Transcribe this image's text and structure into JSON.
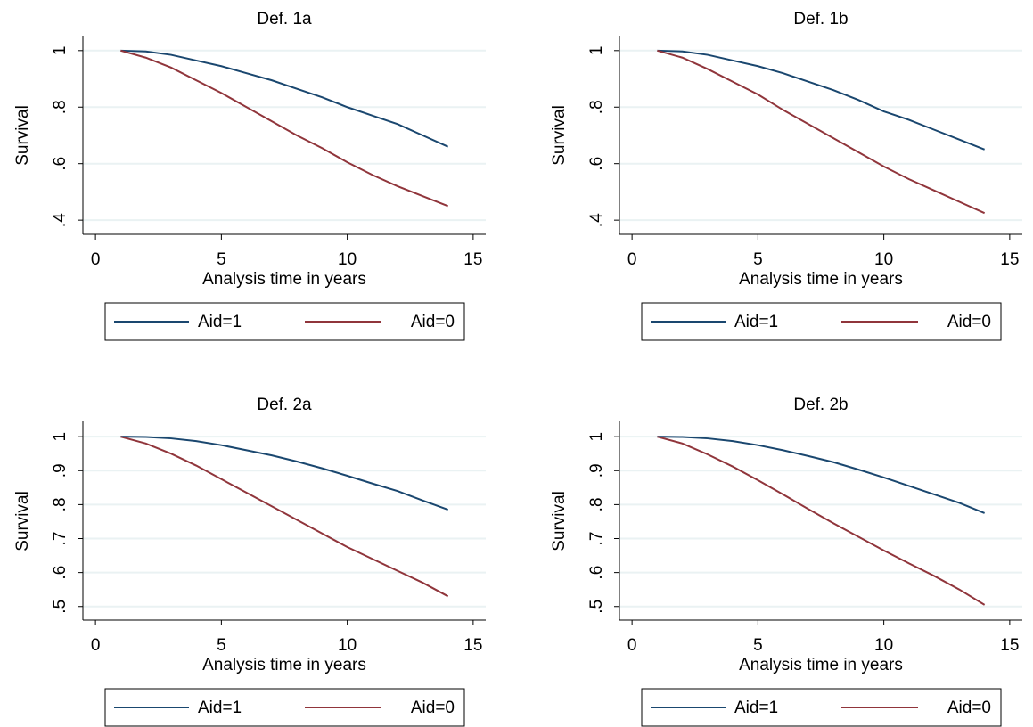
{
  "chart_data": [
    {
      "type": "line",
      "title": "Def. 1a",
      "xlabel": "Analysis time in years",
      "ylabel": "Survival",
      "x": [
        1,
        2,
        3,
        4,
        5,
        6,
        7,
        8,
        9,
        10,
        11,
        12,
        13,
        14
      ],
      "series": [
        {
          "name": "Aid=1",
          "color": "#1a476f",
          "values": [
            1.0,
            0.997,
            0.985,
            0.965,
            0.945,
            0.92,
            0.895,
            0.865,
            0.835,
            0.8,
            0.77,
            0.74,
            0.7,
            0.66
          ]
        },
        {
          "name": "Aid=0",
          "color": "#90353b",
          "values": [
            1.0,
            0.975,
            0.94,
            0.895,
            0.85,
            0.8,
            0.75,
            0.7,
            0.655,
            0.605,
            0.56,
            0.52,
            0.485,
            0.45
          ]
        }
      ],
      "xlim": [
        -0.5,
        15.5
      ],
      "xticks": [
        0,
        5,
        10,
        15
      ],
      "ylim": [
        0.35,
        1.053
      ],
      "yticks": [
        {
          "value": 0.4,
          "label": ".4"
        },
        {
          "value": 0.6,
          "label": ".6"
        },
        {
          "value": 0.8,
          "label": ".8"
        },
        1
      ],
      "grid": true
    },
    {
      "type": "line",
      "title": "Def. 1b",
      "xlabel": "Analysis time in years",
      "ylabel": "Survival",
      "x": [
        1,
        2,
        3,
        4,
        5,
        6,
        7,
        8,
        9,
        10,
        11,
        12,
        13,
        14
      ],
      "series": [
        {
          "name": "Aid=1",
          "color": "#1a476f",
          "values": [
            1.0,
            0.997,
            0.985,
            0.965,
            0.945,
            0.92,
            0.89,
            0.86,
            0.825,
            0.785,
            0.755,
            0.72,
            0.685,
            0.65
          ]
        },
        {
          "name": "Aid=0",
          "color": "#90353b",
          "values": [
            1.0,
            0.975,
            0.935,
            0.89,
            0.845,
            0.79,
            0.74,
            0.69,
            0.64,
            0.59,
            0.545,
            0.505,
            0.465,
            0.425
          ]
        }
      ],
      "xlim": [
        -0.5,
        15.5
      ],
      "xticks": [
        0,
        5,
        10,
        15
      ],
      "ylim": [
        0.35,
        1.053
      ],
      "yticks": [
        {
          "value": 0.4,
          "label": ".4"
        },
        {
          "value": 0.6,
          "label": ".6"
        },
        {
          "value": 0.8,
          "label": ".8"
        },
        1
      ],
      "grid": true
    },
    {
      "type": "line",
      "title": "Def. 2a",
      "xlabel": "Analysis time in years",
      "ylabel": "Survival",
      "x": [
        1,
        2,
        3,
        4,
        5,
        6,
        7,
        8,
        9,
        10,
        11,
        12,
        13,
        14
      ],
      "series": [
        {
          "name": "Aid=1",
          "color": "#1a476f",
          "values": [
            1.0,
            0.999,
            0.995,
            0.987,
            0.975,
            0.96,
            0.945,
            0.927,
            0.907,
            0.885,
            0.862,
            0.84,
            0.812,
            0.785
          ]
        },
        {
          "name": "Aid=0",
          "color": "#90353b",
          "values": [
            1.0,
            0.98,
            0.95,
            0.915,
            0.875,
            0.835,
            0.795,
            0.755,
            0.715,
            0.675,
            0.64,
            0.605,
            0.57,
            0.53
          ]
        }
      ],
      "xlim": [
        -0.5,
        15.5
      ],
      "xticks": [
        0,
        5,
        10,
        15
      ],
      "ylim": [
        0.46,
        1.045
      ],
      "yticks": [
        {
          "value": 0.5,
          "label": ".5"
        },
        {
          "value": 0.6,
          "label": ".6"
        },
        {
          "value": 0.7,
          "label": ".7"
        },
        {
          "value": 0.8,
          "label": ".8"
        },
        {
          "value": 0.9,
          "label": ".9"
        },
        1
      ],
      "grid": true
    },
    {
      "type": "line",
      "title": "Def. 2b",
      "xlabel": "Analysis time in years",
      "ylabel": "Survival",
      "x": [
        1,
        2,
        3,
        4,
        5,
        6,
        7,
        8,
        9,
        10,
        11,
        12,
        13,
        14
      ],
      "series": [
        {
          "name": "Aid=1",
          "color": "#1a476f",
          "values": [
            1.0,
            0.999,
            0.995,
            0.987,
            0.975,
            0.96,
            0.943,
            0.925,
            0.903,
            0.88,
            0.855,
            0.83,
            0.805,
            0.775
          ]
        },
        {
          "name": "Aid=0",
          "color": "#90353b",
          "values": [
            1.0,
            0.98,
            0.948,
            0.912,
            0.872,
            0.83,
            0.787,
            0.745,
            0.705,
            0.665,
            0.627,
            0.59,
            0.55,
            0.505
          ]
        }
      ],
      "xlim": [
        -0.5,
        15.5
      ],
      "xticks": [
        0,
        5,
        10,
        15
      ],
      "ylim": [
        0.46,
        1.045
      ],
      "yticks": [
        {
          "value": 0.5,
          "label": ".5"
        },
        {
          "value": 0.6,
          "label": ".6"
        },
        {
          "value": 0.7,
          "label": ".7"
        },
        {
          "value": 0.8,
          "label": ".8"
        },
        {
          "value": 0.9,
          "label": ".9"
        },
        1
      ],
      "grid": true
    }
  ]
}
